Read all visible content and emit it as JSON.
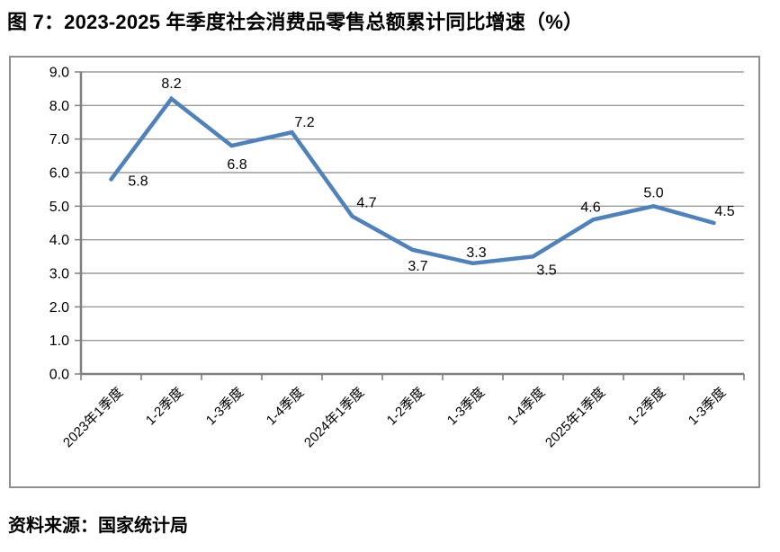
{
  "page": {
    "title": "图 7：2023-2025 年季度社会消费品零售总额累计同比增速（%）",
    "source": "资料来源：国家统计局"
  },
  "chart_data": {
    "type": "line",
    "title": "2023-2025 年季度社会消费品零售总额累计同比增速（%）",
    "categories": [
      "2023年1季度",
      "1-2季度",
      "1-3季度",
      "1-4季度",
      "2024年1季度",
      "1-2季度",
      "1-3季度",
      "1-4季度",
      "2025年1季度",
      "1-2季度",
      "1-3季度"
    ],
    "values": [
      5.8,
      8.2,
      6.8,
      7.2,
      4.7,
      3.7,
      3.3,
      3.5,
      4.6,
      5.0,
      4.5
    ],
    "data_labels": [
      "5.8",
      "8.2",
      "6.8",
      "7.2",
      "4.7",
      "3.7",
      "3.3",
      "3.5",
      "4.6",
      "5.0",
      "4.5"
    ],
    "xlabel": "",
    "ylabel": "",
    "ylim": [
      0.0,
      9.0
    ],
    "ytick_step": 1.0,
    "ytick_labels": [
      "0.0",
      "1.0",
      "2.0",
      "3.0",
      "4.0",
      "5.0",
      "6.0",
      "7.0",
      "8.0",
      "9.0"
    ],
    "grid": true,
    "legend_position": "none",
    "line_color": "#4F81BD",
    "axis_color": "#7F7F7F",
    "grid_color": "#9B9B9B"
  }
}
